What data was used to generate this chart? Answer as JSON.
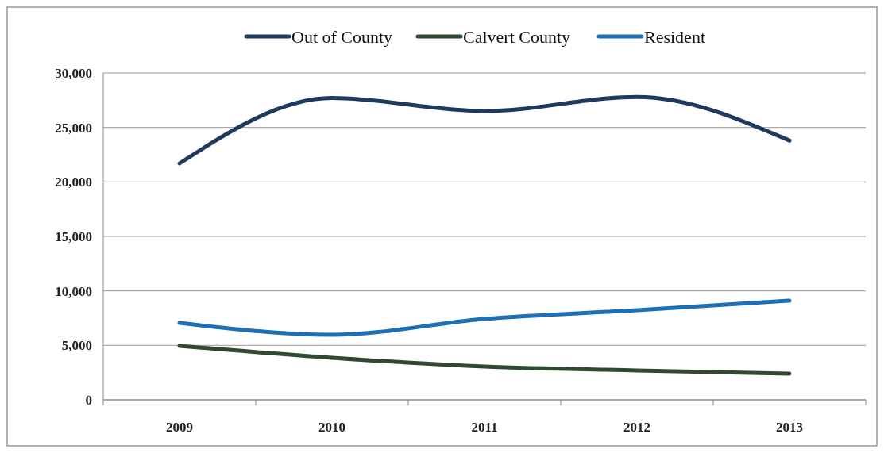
{
  "chart_data": {
    "type": "line",
    "categories": [
      "2009",
      "2010",
      "2011",
      "2012",
      "2013"
    ],
    "series": [
      {
        "name": "Out of County",
        "color": "#1f3a5f",
        "values": [
          21700,
          27700,
          26500,
          27800,
          23800
        ]
      },
      {
        "name": "Calvert County",
        "color": "#2f4a30",
        "values": [
          4950,
          3860,
          3060,
          2700,
          2400
        ]
      },
      {
        "name": "Resident",
        "color": "#1f6fb4",
        "values": [
          7060,
          5970,
          7430,
          8230,
          9100
        ]
      }
    ],
    "ylim": [
      0,
      30000
    ],
    "yticks": [
      {
        "value": 0,
        "label": "0"
      },
      {
        "value": 5000,
        "label": "5,000"
      },
      {
        "value": 10000,
        "label": "10,000"
      },
      {
        "value": 15000,
        "label": "15,000"
      },
      {
        "value": 20000,
        "label": "20,000"
      },
      {
        "value": 25000,
        "label": "25,000"
      },
      {
        "value": 30000,
        "label": "30,000"
      }
    ],
    "grid": "y",
    "legend": "top",
    "marker": "none",
    "line_style": "solid"
  }
}
